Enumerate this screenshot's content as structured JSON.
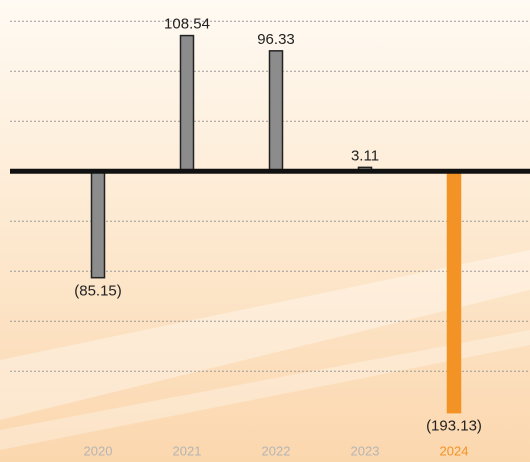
{
  "chart_data": {
    "type": "bar",
    "categories": [
      "2020",
      "2021",
      "2022",
      "2023",
      "2024"
    ],
    "values": [
      -85.15,
      108.54,
      96.33,
      3.11,
      -193.13
    ],
    "value_labels": [
      "(85.15)",
      "108.54",
      "96.33",
      "3.11",
      "(193.13)"
    ],
    "colors": [
      "#8c8c8c",
      "#8c8c8c",
      "#8c8c8c",
      "#8c8c8c",
      "#f39325"
    ],
    "ylim": [
      -215,
      137
    ],
    "yticks": [
      -160,
      -120,
      -80,
      -40,
      40,
      80,
      120
    ],
    "grid": true
  }
}
